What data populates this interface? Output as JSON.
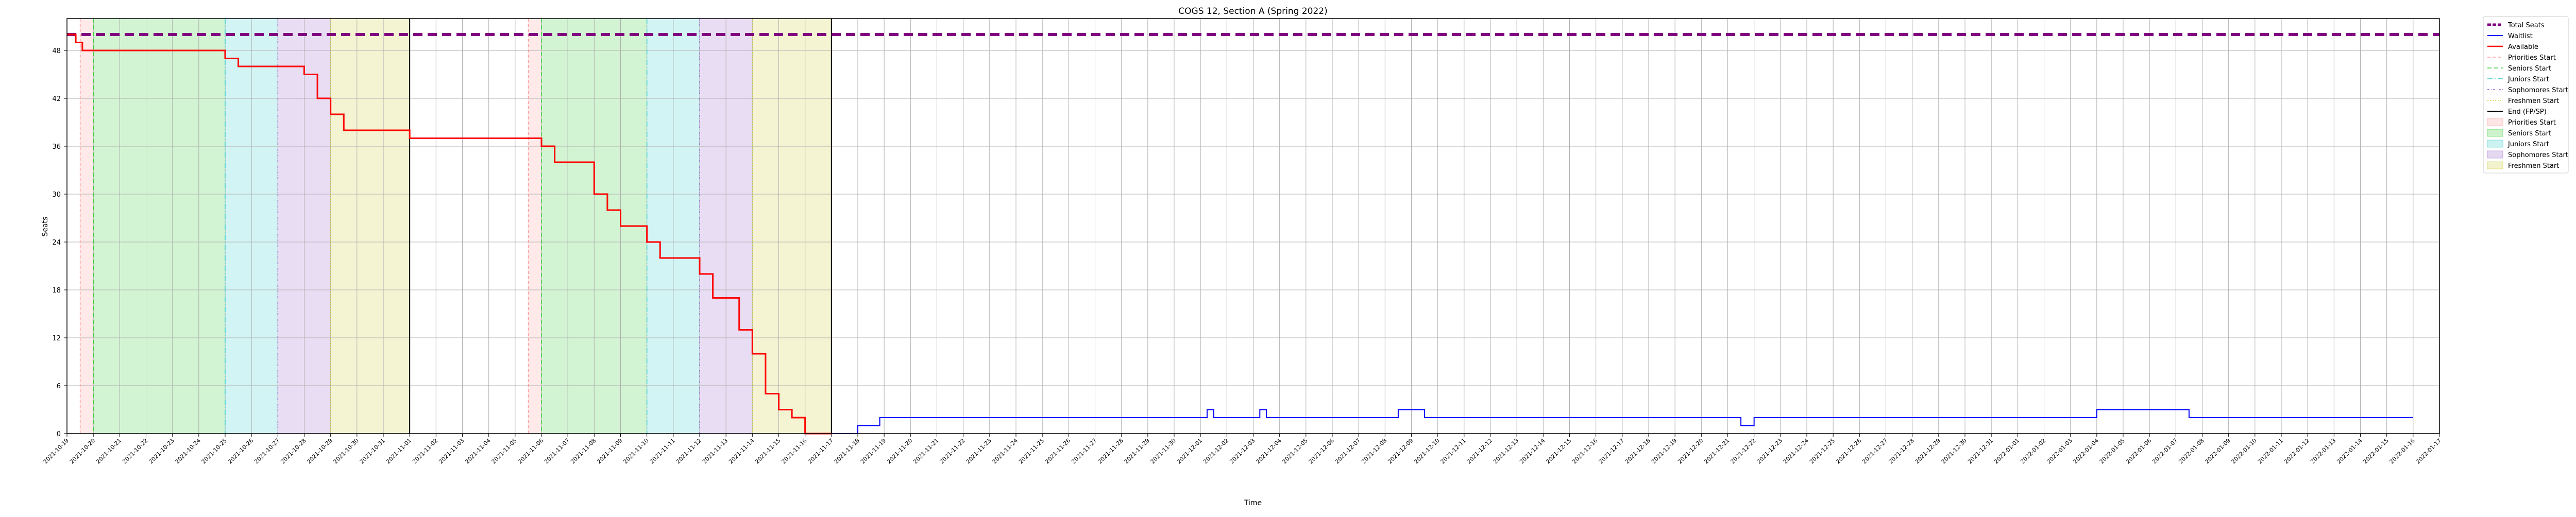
{
  "chart_data": {
    "type": "line",
    "title": "COGS 12, Section A (Spring 2022)",
    "xlabel": "Time",
    "ylabel": "Seats",
    "ylim": [
      0,
      52
    ],
    "yticks": [
      0,
      6,
      12,
      18,
      24,
      30,
      36,
      42,
      48
    ],
    "x_range": [
      "2021-10-19",
      "2022-01-17"
    ],
    "x_tick_dates": [
      "2021-10-19",
      "2021-10-20",
      "2021-10-21",
      "2021-10-22",
      "2021-10-23",
      "2021-10-24",
      "2021-10-25",
      "2021-10-26",
      "2021-10-27",
      "2021-10-28",
      "2021-10-29",
      "2021-10-30",
      "2021-10-31",
      "2021-11-01",
      "2021-11-02",
      "2021-11-03",
      "2021-11-04",
      "2021-11-05",
      "2021-11-06",
      "2021-11-07",
      "2021-11-08",
      "2021-11-09",
      "2021-11-10",
      "2021-11-11",
      "2021-11-12",
      "2021-11-13",
      "2021-11-14",
      "2021-11-15",
      "2021-11-16",
      "2021-11-17",
      "2021-11-18",
      "2021-11-19",
      "2021-11-20",
      "2021-11-21",
      "2021-11-22",
      "2021-11-23",
      "2021-11-24",
      "2021-11-25",
      "2021-11-26",
      "2021-11-27",
      "2021-11-28",
      "2021-11-29",
      "2021-11-30",
      "2021-12-01",
      "2021-12-02",
      "2021-12-03",
      "2021-12-04",
      "2021-12-05",
      "2021-12-06",
      "2021-12-07",
      "2021-12-08",
      "2021-12-09",
      "2021-12-10",
      "2021-12-11",
      "2021-12-12",
      "2021-12-13",
      "2021-12-14",
      "2021-12-15",
      "2021-12-16",
      "2021-12-17",
      "2021-12-18",
      "2021-12-19",
      "2021-12-20",
      "2021-12-21",
      "2021-12-22",
      "2021-12-23",
      "2021-12-24",
      "2021-12-25",
      "2021-12-26",
      "2021-12-27",
      "2021-12-28",
      "2021-12-29",
      "2021-12-30",
      "2021-12-31",
      "2022-01-01",
      "2022-01-02",
      "2022-01-03",
      "2022-01-04",
      "2022-01-05",
      "2022-01-06",
      "2022-01-07",
      "2022-01-08",
      "2022-01-09",
      "2022-01-10",
      "2022-01-11",
      "2022-01-12",
      "2022-01-13",
      "2022-01-14",
      "2022-01-15",
      "2022-01-16",
      "2022-01-17"
    ],
    "grid": true,
    "legend": "outside right",
    "colors": {
      "total": "#800080",
      "waitlist": "#0000ff",
      "available": "#ff0000",
      "priorities": "#ff9999",
      "seniors": "#33cc33",
      "juniors": "#33cccc",
      "sophomores": "#9966cc",
      "freshmen": "#cccc33",
      "end": "#000000"
    },
    "legend_entries": [
      {
        "label": "Total Seats",
        "style": "total"
      },
      {
        "label": "Waitlist",
        "style": "waitlist"
      },
      {
        "label": "Available",
        "style": "available"
      },
      {
        "label": "Priorities Start",
        "style": "priorities-line"
      },
      {
        "label": "Seniors Start",
        "style": "seniors-line"
      },
      {
        "label": "Juniors Start",
        "style": "juniors-line"
      },
      {
        "label": "Sophomores Start",
        "style": "sophomores-line"
      },
      {
        "label": "Freshmen Start",
        "style": "freshmen-line"
      },
      {
        "label": "End (FP/SP)",
        "style": "end-line"
      },
      {
        "label": "Priorities Start",
        "style": "priorities-patch"
      },
      {
        "label": "Seniors Start",
        "style": "seniors-patch"
      },
      {
        "label": "Juniors Start",
        "style": "juniors-patch"
      },
      {
        "label": "Sophomores Start",
        "style": "sophomores-patch"
      },
      {
        "label": "Freshmen Start",
        "style": "freshmen-patch"
      }
    ],
    "passes": [
      {
        "priorities": "2021-10-19 12:00",
        "seniors": "2021-10-20 00:00",
        "juniors": "2021-10-25 00:00",
        "sophomores": "2021-10-27 00:00",
        "freshmen": "2021-10-29 00:00",
        "end": "2021-11-01 00:00"
      },
      {
        "priorities": "2021-11-05 12:00",
        "seniors": "2021-11-06 00:00",
        "juniors": "2021-11-10 00:00",
        "sophomores": "2021-11-12 00:00",
        "freshmen": "2021-11-14 00:00",
        "end": "2021-11-17 00:00"
      }
    ],
    "series": [
      {
        "name": "Total Seats",
        "x": [
          "2021-10-19 00:00",
          "2022-01-17 00:00"
        ],
        "values": [
          50,
          50
        ]
      },
      {
        "name": "Waitlist",
        "x": [
          "2021-11-16 00:00",
          "2021-11-18 00:00",
          "2021-11-18 20:00",
          "2021-12-01 00:00",
          "2021-12-01 06:00",
          "2021-12-01 12:00",
          "2021-12-01 18:00",
          "2021-12-03 00:00",
          "2021-12-03 06:00",
          "2021-12-03 12:00",
          "2021-12-03 18:00",
          "2021-12-08 00:00",
          "2021-12-08 12:00",
          "2021-12-09 00:00",
          "2021-12-09 12:00",
          "2021-12-15 12:00",
          "2021-12-21 12:00",
          "2021-12-22 00:00",
          "2021-12-26 12:00",
          "2022-01-04 00:00",
          "2022-01-07 12:00",
          "2022-01-11 00:00",
          "2022-01-15 00:00",
          "2022-01-16 00:00"
        ],
        "values": [
          0,
          1,
          2,
          2,
          3,
          2,
          2,
          2,
          3,
          2,
          2,
          2,
          3,
          3,
          2,
          2,
          1,
          2,
          2,
          3,
          2,
          2,
          2,
          2
        ]
      },
      {
        "name": "Available",
        "x": [
          "2021-10-19 00:00",
          "2021-10-19 08:00",
          "2021-10-19 14:00",
          "2021-10-21 00:00",
          "2021-10-25 00:00",
          "2021-10-25 12:00",
          "2021-10-27 00:00",
          "2021-10-28 00:00",
          "2021-10-28 12:00",
          "2021-10-29 00:00",
          "2021-10-29 12:00",
          "2021-10-30 00:00",
          "2021-11-01 00:00",
          "2021-11-05 12:00",
          "2021-11-06 00:00",
          "2021-11-06 12:00",
          "2021-11-07 12:00",
          "2021-11-08 00:00",
          "2021-11-08 12:00",
          "2021-11-09 00:00",
          "2021-11-09 12:00",
          "2021-11-10 00:00",
          "2021-11-10 12:00",
          "2021-11-11 12:00",
          "2021-11-12 00:00",
          "2021-11-12 12:00",
          "2021-11-13 00:00",
          "2021-11-13 12:00",
          "2021-11-14 00:00",
          "2021-11-14 12:00",
          "2021-11-15 00:00",
          "2021-11-15 12:00",
          "2021-11-16 00:00",
          "2021-11-17 00:00"
        ],
        "values": [
          50,
          49,
          48,
          48,
          47,
          46,
          46,
          45,
          42,
          40,
          38,
          38,
          37,
          37,
          36,
          34,
          34,
          30,
          28,
          26,
          26,
          24,
          22,
          22,
          20,
          17,
          17,
          13,
          10,
          5,
          3,
          2,
          0,
          0
        ]
      }
    ]
  }
}
